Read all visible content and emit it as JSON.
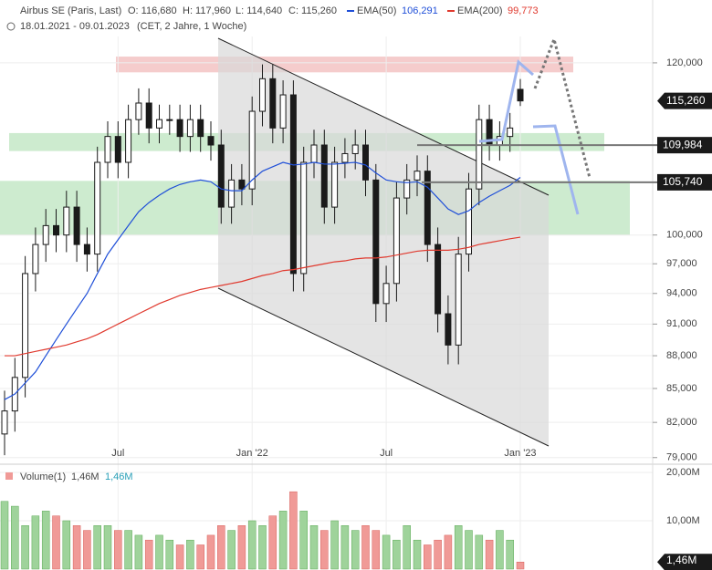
{
  "header": {
    "instrument": "Airbus SE (Paris, Last)",
    "open": "O: 116,680",
    "high": "H: 117,960",
    "low": "L: 114,640",
    "close": "C: 115,260",
    "ema50_name": "EMA(50)",
    "ema50_value": "106,291",
    "ema200_name": "EMA(200)",
    "ema200_value": "99,773",
    "range": "18.01.2021 - 09.01.2023",
    "info": "(CET, 2 Jahre, 1 Woche)"
  },
  "chart_data": [
    {
      "type": "candlestick",
      "log_scale": true,
      "ylim": [
        78600,
        123400
      ],
      "yticks": [
        {
          "value": 120000,
          "label": "120,000"
        },
        {
          "value": 100000,
          "label": "100,000"
        },
        {
          "value": 97000,
          "label": "97,000"
        },
        {
          "value": 94000,
          "label": "94,000"
        },
        {
          "value": 91000,
          "label": "91,000"
        },
        {
          "value": 88000,
          "label": "88,000"
        },
        {
          "value": 85000,
          "label": "85,000"
        },
        {
          "value": 82000,
          "label": "82,000"
        },
        {
          "value": 79000,
          "label": "79,000"
        }
      ],
      "x_labels": [
        {
          "at": 11,
          "label": "Jul"
        },
        {
          "at": 24,
          "label": "Jan '22"
        },
        {
          "at": 37,
          "label": "Jul"
        },
        {
          "at": 50,
          "label": "Jan '23"
        }
      ],
      "up_color": "#1a1a1a",
      "down_color": "#1a1a1a",
      "open": [
        81000,
        83000,
        86000,
        96000,
        99000,
        101000,
        100000,
        103000,
        99000,
        98000,
        108000,
        111000,
        108000,
        113000,
        115000,
        112000,
        113000,
        113000,
        111000,
        113000,
        111000,
        110000,
        103000,
        106000,
        105000,
        114000,
        118000,
        112000,
        116000,
        96000,
        108000,
        110000,
        103000,
        108000,
        109000,
        110000,
        106000,
        93000,
        95000,
        104000,
        106000,
        107000,
        99000,
        92000,
        89000,
        98000,
        105000,
        113000,
        110000,
        111000,
        116680
      ],
      "high": [
        84800,
        87800,
        97800,
        100800,
        102800,
        102800,
        104800,
        104800,
        100800,
        109800,
        112800,
        112800,
        114800,
        116800,
        116800,
        114800,
        114800,
        114800,
        114800,
        114800,
        112800,
        111800,
        107800,
        107800,
        115800,
        119800,
        119800,
        117800,
        117800,
        109800,
        111800,
        111800,
        109800,
        110800,
        111800,
        111800,
        107800,
        96800,
        105800,
        107800,
        108800,
        108800,
        100800,
        93800,
        99800,
        106800,
        114800,
        114800,
        112800,
        113800,
        117960
      ],
      "low": [
        79200,
        81200,
        84200,
        94200,
        97200,
        98200,
        98200,
        97200,
        96200,
        96200,
        106200,
        106200,
        106200,
        111200,
        110200,
        110200,
        111200,
        109200,
        109200,
        109200,
        108200,
        101200,
        101200,
        103200,
        103200,
        112200,
        110200,
        110200,
        94200,
        94200,
        106200,
        101200,
        101200,
        106200,
        107200,
        104200,
        91200,
        91200,
        93200,
        102200,
        104200,
        97200,
        90200,
        87200,
        87200,
        96200,
        103200,
        108200,
        108200,
        109200,
        114640
      ],
      "close": [
        83000,
        86000,
        96000,
        99000,
        101000,
        100000,
        103000,
        99000,
        98000,
        108000,
        111000,
        108000,
        113000,
        115000,
        112000,
        113000,
        113000,
        111000,
        113000,
        111000,
        110000,
        103000,
        106000,
        105000,
        114000,
        118000,
        112000,
        116000,
        96000,
        108000,
        110000,
        103000,
        108000,
        109000,
        110000,
        106000,
        93000,
        95000,
        104000,
        106000,
        107000,
        99000,
        92000,
        89000,
        98000,
        105000,
        113000,
        110000,
        111000,
        112000,
        115260
      ],
      "series": [
        {
          "name": "EMA(50)",
          "color": "#1f4fd8",
          "values": [
            84000,
            84500,
            85500,
            86500,
            88000,
            89500,
            91000,
            92500,
            94000,
            96000,
            98000,
            99500,
            101000,
            102500,
            103500,
            104300,
            105000,
            105500,
            105800,
            106000,
            105800,
            105000,
            104800,
            104800,
            106000,
            107000,
            107500,
            108000,
            107700,
            107800,
            108000,
            107800,
            107800,
            107900,
            108000,
            107700,
            106800,
            106000,
            105800,
            105700,
            105800,
            105200,
            104000,
            102800,
            102200,
            102600,
            103500,
            104200,
            104800,
            105400,
            106291
          ]
        },
        {
          "name": "EMA(200)",
          "color": "#e03a2f",
          "values": [
            88000,
            88000,
            88200,
            88400,
            88600,
            88800,
            89000,
            89300,
            89600,
            90000,
            90500,
            91000,
            91500,
            92000,
            92500,
            93000,
            93400,
            93800,
            94100,
            94400,
            94600,
            94800,
            95000,
            95200,
            95500,
            95800,
            96000,
            96300,
            96400,
            96600,
            96800,
            97000,
            97200,
            97300,
            97500,
            97600,
            97600,
            97700,
            97900,
            98100,
            98300,
            98400,
            98400,
            98400,
            98500,
            98700,
            99000,
            99200,
            99400,
            99600,
            99773
          ]
        }
      ],
      "zones": [
        {
          "from": 118800,
          "to": 120800,
          "color": "#f5cccc"
        },
        {
          "from": 109300,
          "to": 111400,
          "color": "#cdebcf"
        },
        {
          "from": 100000,
          "to": 105900,
          "color": "#cdebcf"
        }
      ],
      "levels": [
        {
          "value": 109984,
          "label": "109,984"
        },
        {
          "value": 105740,
          "label": "105,740"
        }
      ],
      "last": {
        "value": 115260,
        "label": "115,260"
      }
    },
    {
      "type": "bar",
      "title": "Volume(1)",
      "legend_value": "1,46M",
      "legend_value2": "1,46M",
      "last_label": "1,46M",
      "ylim": [
        0,
        21500000
      ],
      "yticks": [
        {
          "value": 20000000,
          "label": "20,00M"
        },
        {
          "value": 10000000,
          "label": "10,00M"
        }
      ],
      "up_color": "#9fd39b",
      "down_color": "#f09a97",
      "values": [
        14000000,
        13000000,
        9000000,
        11000000,
        12000000,
        11000000,
        10000000,
        9000000,
        8000000,
        9000000,
        9000000,
        8000000,
        8000000,
        7000000,
        6000000,
        7000000,
        6000000,
        5000000,
        6000000,
        5000000,
        7000000,
        9000000,
        8000000,
        9000000,
        10000000,
        9000000,
        11000000,
        12000000,
        16000000,
        12000000,
        9000000,
        8000000,
        10000000,
        9000000,
        8000000,
        9000000,
        8000000,
        7000000,
        6000000,
        9000000,
        6000000,
        5000000,
        6000000,
        7000000,
        9000000,
        8000000,
        7000000,
        6000000,
        8000000,
        6000000,
        1460000
      ]
    }
  ]
}
